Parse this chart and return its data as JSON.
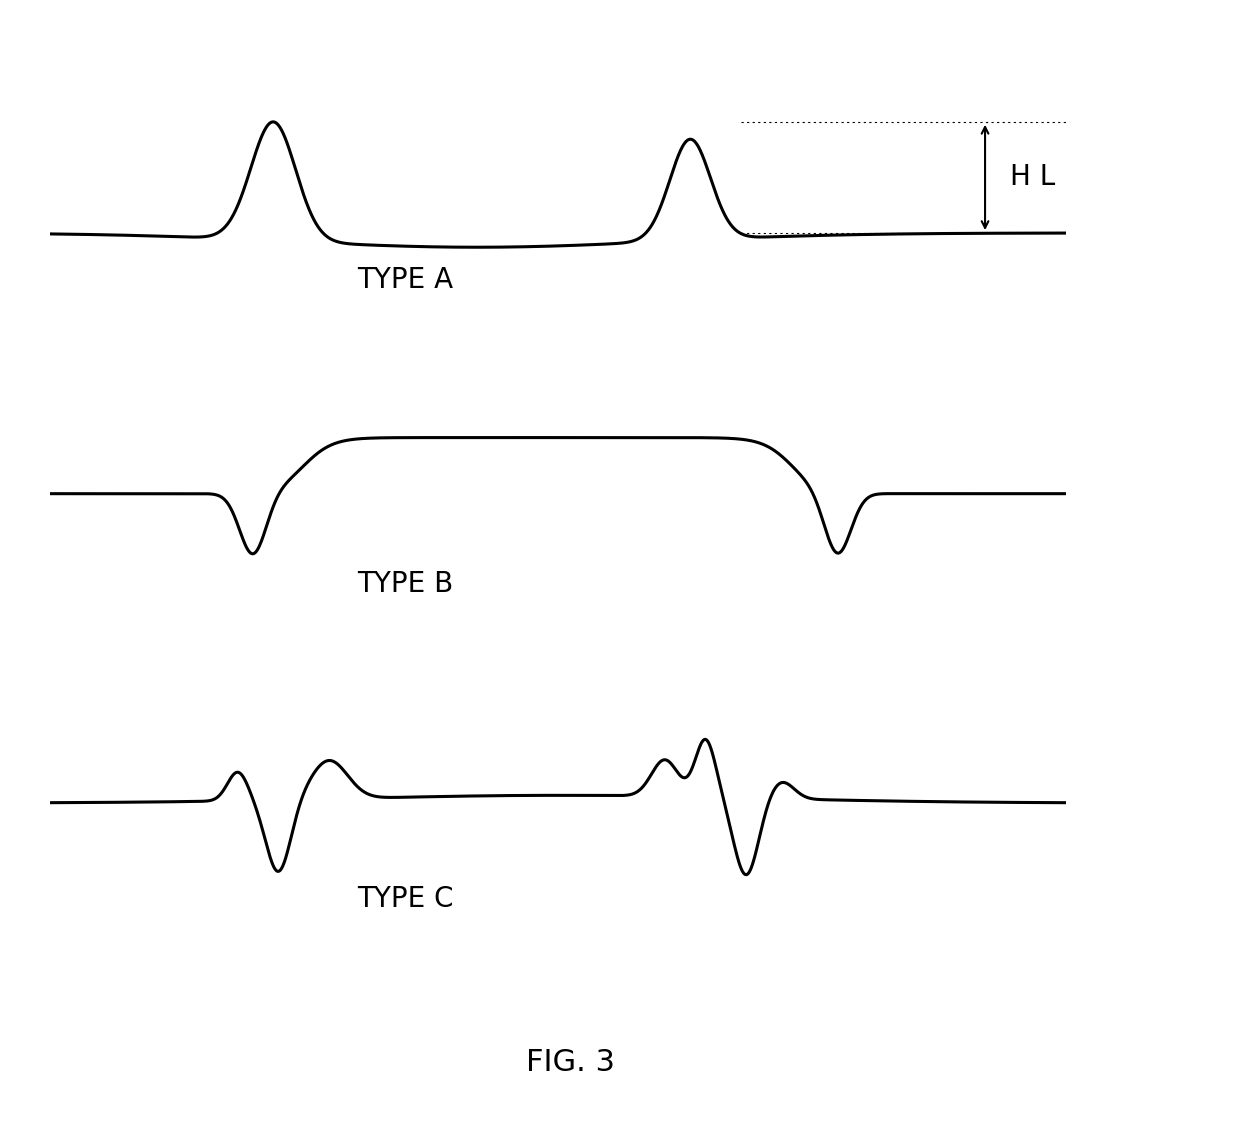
{
  "background_color": "#ffffff",
  "line_color": "#000000",
  "line_width": 2.2,
  "label_A": "TYPE A",
  "label_B": "TYPE B",
  "label_C": "TYPE C",
  "fig_label": "FIG. 3",
  "HL_label": "H L",
  "label_fontsize": 20,
  "fig_fontsize": 22
}
